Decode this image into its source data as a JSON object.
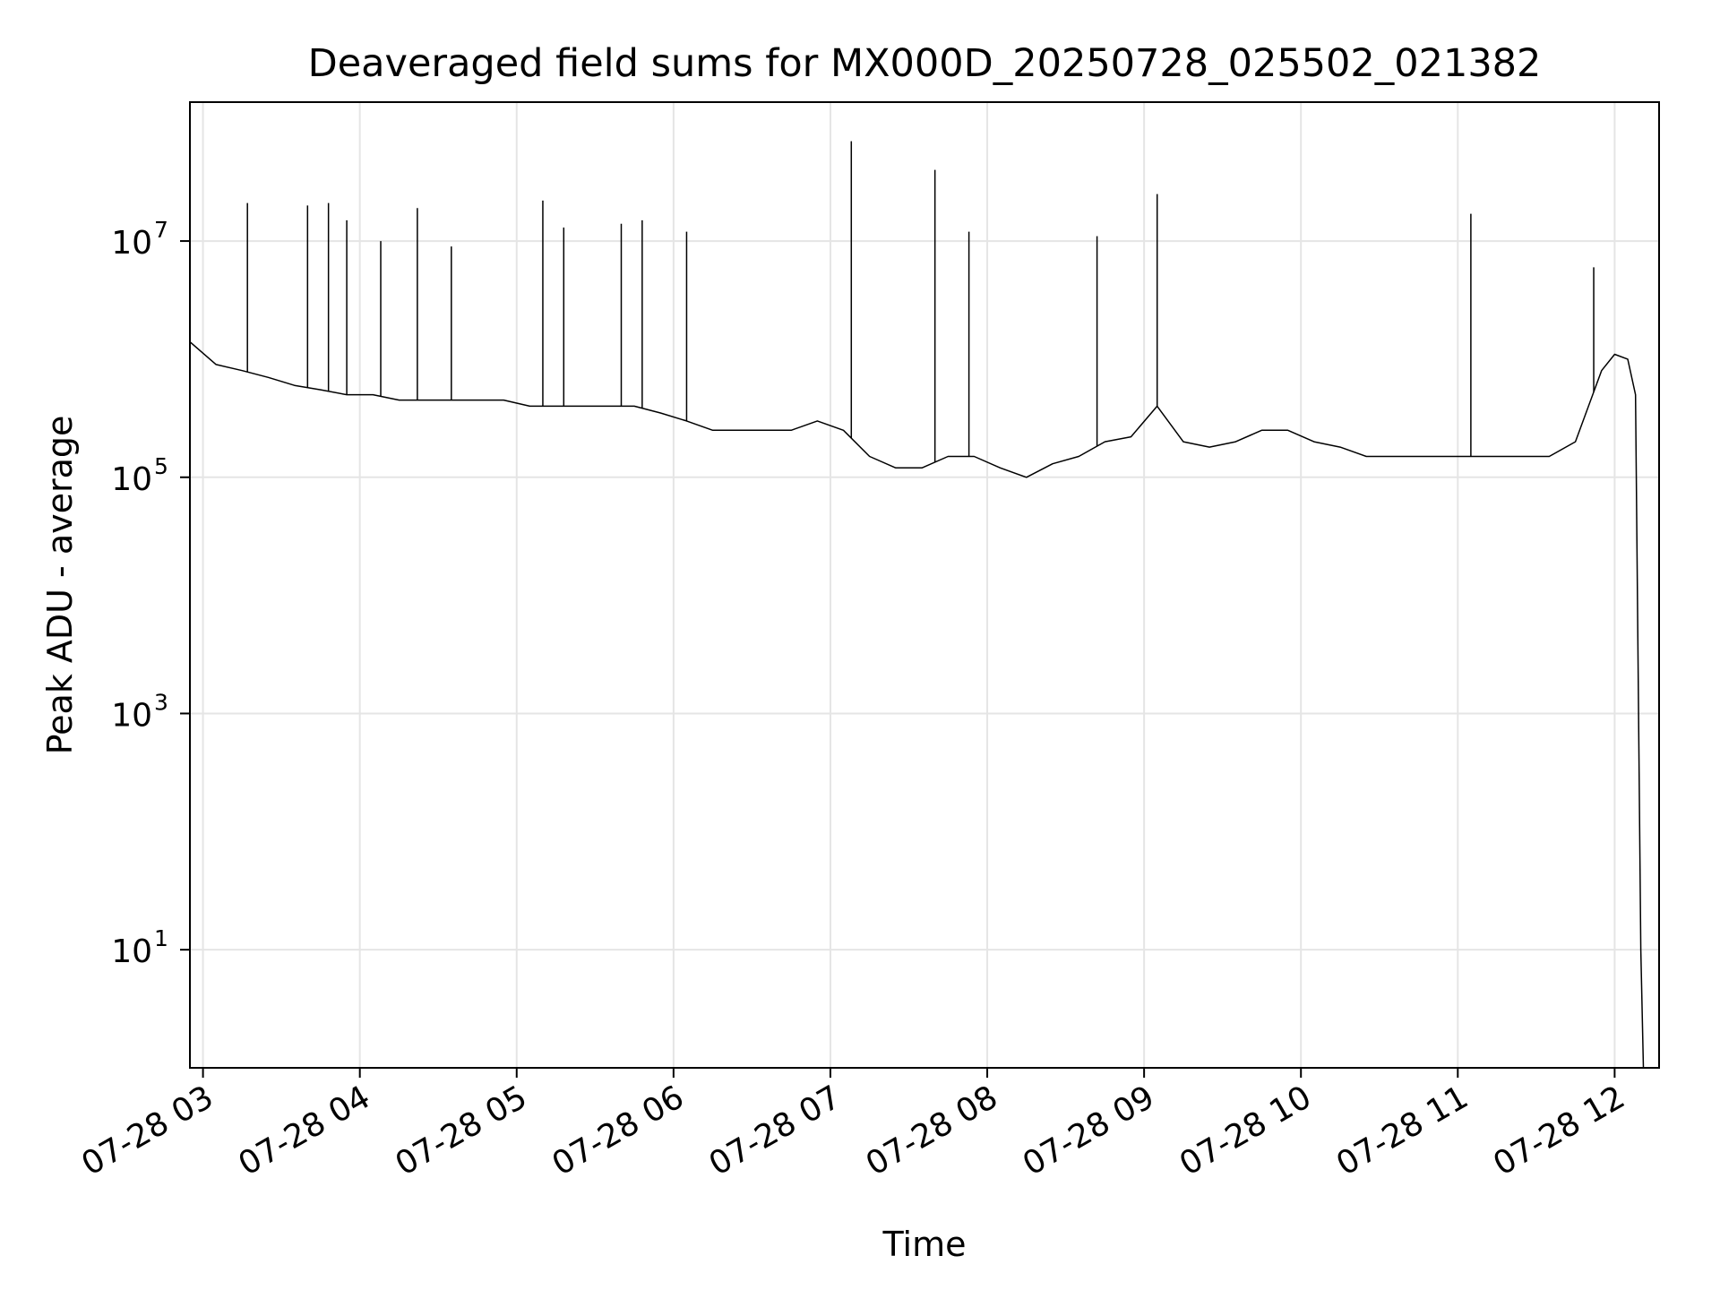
{
  "chart_data": {
    "type": "line",
    "title": "Deaveraged field sums for MX000D_20250728_025502_021382",
    "xlabel": "Time",
    "ylabel": "Peak ADU - average",
    "yscale": "log",
    "ylim": [
      1,
      150000000.0
    ],
    "xlim": [
      "07-28 02:55",
      "07-28 12:17"
    ],
    "grid": true,
    "line_color": "#000000",
    "grid_color": "#e5e5e5",
    "x_ticks": [
      "07-28 03",
      "07-28 04",
      "07-28 05",
      "07-28 06",
      "07-28 07",
      "07-28 08",
      "07-28 09",
      "07-28 10",
      "07-28 11",
      "07-28 12"
    ],
    "y_ticks": [
      {
        "base": "10",
        "exp": "1",
        "value": 10
      },
      {
        "base": "10",
        "exp": "3",
        "value": 1000
      },
      {
        "base": "10",
        "exp": "5",
        "value": 100000
      },
      {
        "base": "10",
        "exp": "7",
        "value": 10000000
      }
    ],
    "series": [
      {
        "x": [
          "07-28 02:55",
          "07-28 03:05",
          "07-28 03:15",
          "07-28 03:25",
          "07-28 03:35",
          "07-28 03:45",
          "07-28 03:55",
          "07-28 04:05",
          "07-28 04:15",
          "07-28 04:25",
          "07-28 04:35",
          "07-28 04:45",
          "07-28 04:55",
          "07-28 05:05",
          "07-28 05:15",
          "07-28 05:25",
          "07-28 05:35",
          "07-28 05:45",
          "07-28 05:55",
          "07-28 06:05",
          "07-28 06:15",
          "07-28 06:25",
          "07-28 06:35",
          "07-28 06:45",
          "07-28 06:55",
          "07-28 07:05",
          "07-28 07:15",
          "07-28 07:25",
          "07-28 07:35",
          "07-28 07:45",
          "07-28 07:55",
          "07-28 08:05",
          "07-28 08:15",
          "07-28 08:25",
          "07-28 08:35",
          "07-28 08:45",
          "07-28 08:55",
          "07-28 09:05",
          "07-28 09:15",
          "07-28 09:25",
          "07-28 09:35",
          "07-28 09:45",
          "07-28 09:55",
          "07-28 10:05",
          "07-28 10:15",
          "07-28 10:25",
          "07-28 10:35",
          "07-28 10:45",
          "07-28 10:55",
          "07-28 11:05",
          "07-28 11:15",
          "07-28 11:25",
          "07-28 11:35",
          "07-28 11:45",
          "07-28 11:55",
          "07-28 12:00",
          "07-28 12:05",
          "07-28 12:08",
          "07-28 12:10",
          "07-28 12:11"
        ],
        "y": [
          1400000,
          900000,
          800000,
          700000,
          600000,
          550000,
          500000,
          500000,
          450000,
          450000,
          450000,
          450000,
          450000,
          400000,
          400000,
          400000,
          400000,
          400000,
          350000,
          300000,
          250000,
          250000,
          250000,
          250000,
          300000,
          250000,
          150000,
          120000,
          120000,
          150000,
          150000,
          120000,
          100000,
          130000,
          150000,
          200000,
          220000,
          400000,
          200000,
          180000,
          200000,
          250000,
          250000,
          200000,
          180000,
          150000,
          150000,
          150000,
          150000,
          150000,
          150000,
          150000,
          150000,
          200000,
          800000,
          1100000,
          1000000,
          500000,
          10,
          1
        ]
      }
    ],
    "spikes": [
      {
        "x": "07-28 03:17",
        "y": 21000000
      },
      {
        "x": "07-28 03:40",
        "y": 20000000
      },
      {
        "x": "07-28 03:48",
        "y": 21000000
      },
      {
        "x": "07-28 03:55",
        "y": 15000000
      },
      {
        "x": "07-28 04:08",
        "y": 10000000
      },
      {
        "x": "07-28 04:22",
        "y": 19000000
      },
      {
        "x": "07-28 04:35",
        "y": 9000000
      },
      {
        "x": "07-28 05:10",
        "y": 22000000
      },
      {
        "x": "07-28 05:18",
        "y": 13000000
      },
      {
        "x": "07-28 05:40",
        "y": 14000000
      },
      {
        "x": "07-28 05:48",
        "y": 15000000
      },
      {
        "x": "07-28 06:05",
        "y": 12000000
      },
      {
        "x": "07-28 07:08",
        "y": 70000000
      },
      {
        "x": "07-28 07:40",
        "y": 40000000
      },
      {
        "x": "07-28 07:53",
        "y": 12000000
      },
      {
        "x": "07-28 08:42",
        "y": 11000000
      },
      {
        "x": "07-28 09:05",
        "y": 25000000
      },
      {
        "x": "07-28 11:05",
        "y": 17000000
      },
      {
        "x": "07-28 11:52",
        "y": 6000000
      }
    ]
  }
}
